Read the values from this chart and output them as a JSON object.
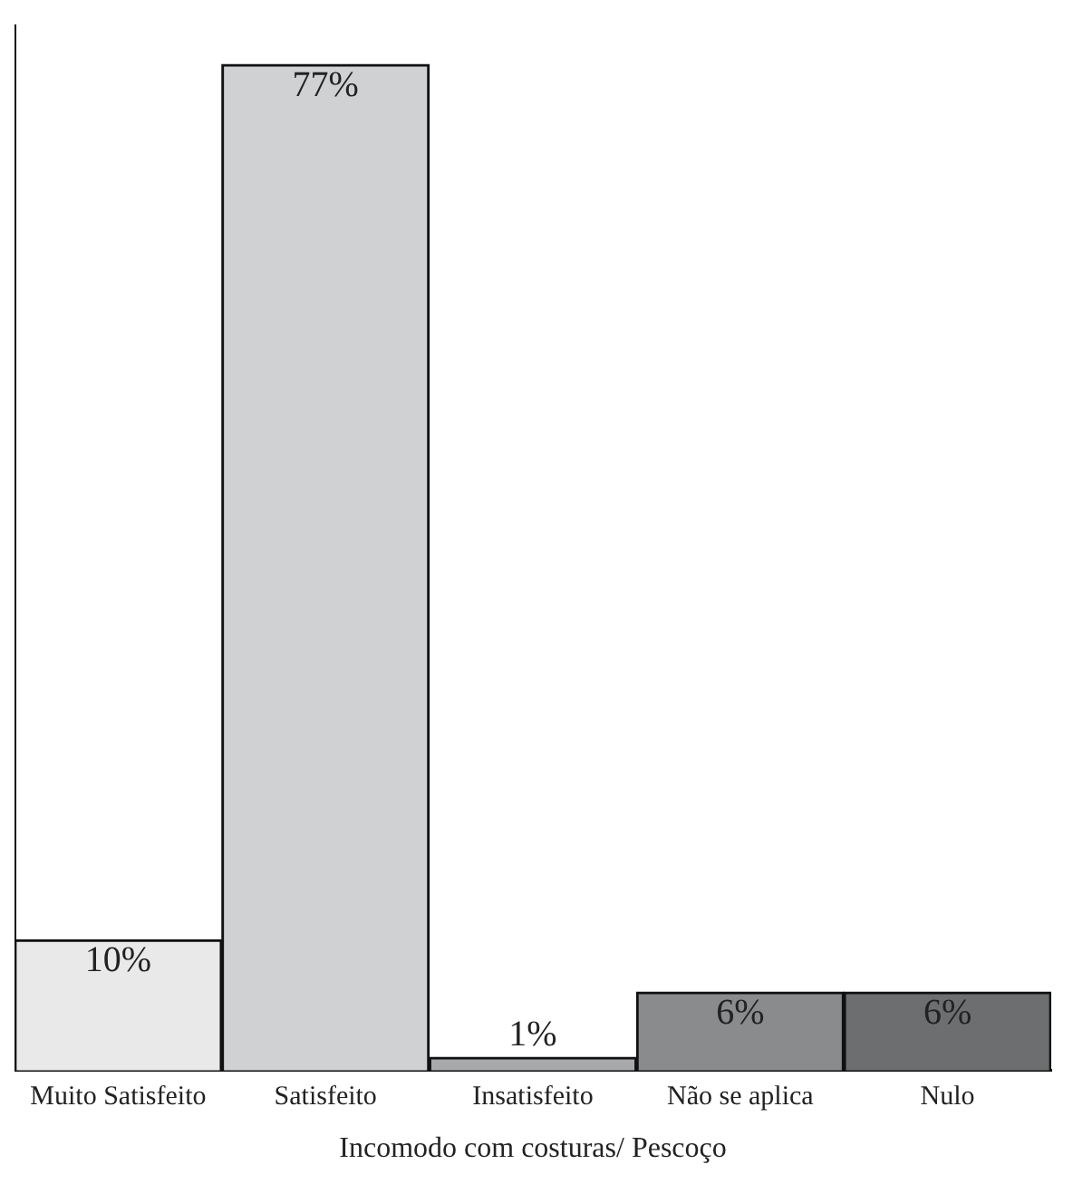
{
  "chart_data": {
    "type": "bar",
    "xlabel": "Incomodo com costuras/ Pescoço",
    "categories": [
      "Muito Satisfeito",
      "Satisfeito",
      "Insatisfeito",
      "Não se aplica",
      "Nulo"
    ],
    "values": [
      10,
      77,
      1,
      6,
      6
    ],
    "colors": [
      "#e8e9e8",
      "#d0d1d3",
      "#a8a9ab",
      "#8a8b8d",
      "#6d6e70"
    ],
    "value_labels": [
      "10%",
      "77%",
      "1%",
      "6%",
      "6%"
    ],
    "tick_labels": "x",
    "grid": false,
    "legend": false
  }
}
